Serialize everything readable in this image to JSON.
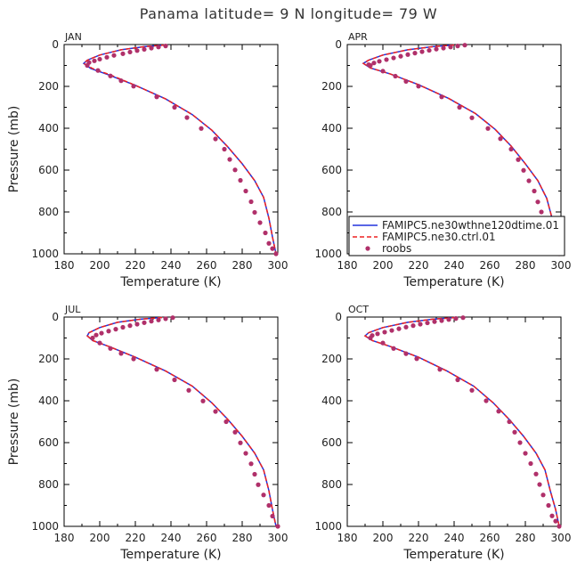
{
  "title": "Panama  latitude= 9 N longitude= 79 W",
  "colors": {
    "model_a": "#2233dd",
    "model_b": "#ee2222",
    "obs": "#b0306a",
    "frame": "#000000"
  },
  "chart_data": [
    {
      "type": "line",
      "panel": "JAN",
      "xlabel": "Temperature (K)",
      "ylabel": "Pressure (mb)",
      "xlim": [
        180,
        300
      ],
      "ylim": [
        1000,
        0
      ],
      "y_inverted": true,
      "xticks": [
        180,
        200,
        220,
        240,
        260,
        280,
        300
      ],
      "yticks": [
        0,
        200,
        400,
        600,
        800,
        1000
      ],
      "series": [
        {
          "name": "FAMIPC5.ne30wthne120dtime.01",
          "style": "solid",
          "x": [
            237,
            225,
            212,
            200,
            193,
            191,
            195,
            205,
            220,
            237,
            252,
            263,
            272,
            280,
            287,
            292,
            295,
            297,
            299
          ],
          "y": [
            2,
            10,
            25,
            50,
            75,
            90,
            115,
            145,
            195,
            260,
            335,
            410,
            490,
            570,
            650,
            730,
            830,
            920,
            1000
          ]
        },
        {
          "name": "FAMIPC5.ne30.ctrl.01",
          "style": "dashed",
          "x": [
            237,
            225,
            212,
            200,
            193,
            191,
            196,
            206,
            220,
            237,
            252,
            263,
            272,
            280,
            287,
            292,
            295,
            297,
            299
          ],
          "y": [
            2,
            10,
            25,
            50,
            75,
            90,
            115,
            145,
            195,
            260,
            335,
            410,
            490,
            570,
            650,
            730,
            830,
            920,
            1000
          ]
        },
        {
          "name": "roobs",
          "style": "dots",
          "x": [
            237,
            233,
            229,
            225,
            221,
            217,
            213,
            208,
            204,
            200,
            197,
            194,
            193,
            199,
            206,
            212,
            219,
            232,
            242,
            249,
            257,
            265,
            270,
            273,
            276,
            279,
            282,
            285,
            287,
            290,
            293,
            295,
            297,
            299
          ],
          "y": [
            7,
            12,
            17,
            23,
            29,
            36,
            44,
            52,
            61,
            70,
            78,
            86,
            100,
            124,
            150,
            173,
            199,
            250,
            300,
            349,
            401,
            451,
            500,
            549,
            599,
            649,
            700,
            751,
            802,
            851,
            900,
            950,
            975,
            1000
          ]
        }
      ]
    },
    {
      "type": "line",
      "panel": "APR",
      "xlabel": "Temperature (K)",
      "ylabel": "",
      "xlim": [
        180,
        300
      ],
      "ylim": [
        1000,
        0
      ],
      "y_inverted": true,
      "xticks": [
        180,
        200,
        220,
        240,
        260,
        280,
        300
      ],
      "yticks": [
        0,
        200,
        400,
        600,
        800,
        1000
      ],
      "legend": {
        "placement": "lower-right"
      },
      "series": [
        {
          "name": "FAMIPC5.ne30wthne120dtime.01",
          "style": "solid",
          "x": [
            240,
            228,
            214,
            200,
            192,
            189,
            193,
            204,
            220,
            237,
            252,
            263,
            272,
            280,
            287,
            292,
            295,
            297,
            299
          ],
          "y": [
            2,
            10,
            25,
            50,
            75,
            90,
            112,
            140,
            192,
            258,
            330,
            405,
            485,
            570,
            650,
            735,
            830,
            920,
            1000
          ]
        },
        {
          "name": "FAMIPC5.ne30.ctrl.01",
          "style": "dashed",
          "x": [
            240,
            228,
            214,
            200,
            192,
            189,
            193,
            204,
            220,
            237,
            252,
            263,
            272,
            280,
            287,
            292,
            295,
            297,
            299
          ],
          "y": [
            2,
            10,
            25,
            50,
            75,
            90,
            112,
            140,
            192,
            258,
            330,
            405,
            485,
            570,
            650,
            735,
            830,
            920,
            1000
          ]
        },
        {
          "name": "roobs",
          "style": "dots",
          "x": [
            246,
            242,
            238,
            234,
            230,
            226,
            222,
            218,
            214,
            210,
            206,
            202,
            198,
            195,
            192,
            193,
            200,
            207,
            213,
            220,
            233,
            243,
            250,
            259,
            266,
            272,
            276,
            279,
            282,
            285,
            287,
            289,
            293,
            295,
            297,
            299
          ],
          "y": [
            3,
            7,
            12,
            17,
            22,
            28,
            34,
            41,
            48,
            56,
            64,
            72,
            80,
            88,
            96,
            100,
            127,
            151,
            176,
            199,
            250,
            300,
            350,
            401,
            450,
            500,
            550,
            601,
            651,
            700,
            752,
            800,
            850,
            900,
            950,
            1000
          ]
        }
      ]
    },
    {
      "type": "line",
      "panel": "JUL",
      "xlabel": "Temperature (K)",
      "ylabel": "Pressure (mb)",
      "xlim": [
        180,
        300
      ],
      "ylim": [
        1000,
        0
      ],
      "y_inverted": true,
      "xticks": [
        180,
        200,
        220,
        240,
        260,
        280,
        300
      ],
      "yticks": [
        0,
        200,
        400,
        600,
        800,
        1000
      ],
      "series": [
        {
          "name": "FAMIPC5.ne30wthne120dtime.01",
          "style": "solid",
          "x": [
            235,
            223,
            210,
            200,
            194,
            193,
            196,
            205,
            220,
            237,
            252,
            263,
            272,
            280,
            287,
            292,
            295,
            297,
            299
          ],
          "y": [
            2,
            10,
            25,
            50,
            75,
            90,
            112,
            140,
            192,
            258,
            330,
            410,
            490,
            570,
            650,
            730,
            830,
            920,
            1000
          ]
        },
        {
          "name": "FAMIPC5.ne30.ctrl.01",
          "style": "dashed",
          "x": [
            235,
            223,
            210,
            200,
            194,
            193,
            196,
            205,
            220,
            237,
            252,
            263,
            272,
            280,
            287,
            292,
            295,
            297,
            299
          ],
          "y": [
            2,
            10,
            25,
            50,
            75,
            90,
            112,
            140,
            192,
            258,
            330,
            410,
            490,
            570,
            650,
            730,
            830,
            920,
            1000
          ]
        },
        {
          "name": "roobs",
          "style": "dots",
          "x": [
            241,
            237,
            233,
            229,
            225,
            221,
            217,
            213,
            209,
            205,
            201,
            198,
            196,
            200,
            206,
            212,
            219,
            232,
            242,
            250,
            258,
            265,
            271,
            276,
            279,
            282,
            285,
            287,
            289,
            292,
            295,
            297,
            300
          ],
          "y": [
            3,
            8,
            14,
            20,
            27,
            34,
            41,
            49,
            58,
            67,
            77,
            86,
            100,
            124,
            150,
            174,
            200,
            250,
            300,
            350,
            401,
            451,
            500,
            550,
            601,
            651,
            701,
            751,
            801,
            850,
            900,
            951,
            1000
          ]
        }
      ]
    },
    {
      "type": "line",
      "panel": "OCT",
      "xlabel": "Temperature (K)",
      "ylabel": "",
      "xlim": [
        180,
        300
      ],
      "ylim": [
        1000,
        0
      ],
      "y_inverted": true,
      "xticks": [
        180,
        200,
        220,
        240,
        260,
        280,
        300
      ],
      "yticks": [
        0,
        200,
        400,
        600,
        800,
        1000
      ],
      "series": [
        {
          "name": "FAMIPC5.ne30wthne120dtime.01",
          "style": "solid",
          "x": [
            241,
            228,
            214,
            200,
            192,
            190,
            194,
            204,
            220,
            236,
            251,
            262,
            271,
            279,
            286,
            291,
            294,
            297,
            299
          ],
          "y": [
            2,
            10,
            25,
            50,
            75,
            90,
            112,
            140,
            192,
            258,
            330,
            410,
            490,
            570,
            650,
            730,
            830,
            920,
            1000
          ]
        },
        {
          "name": "FAMIPC5.ne30.ctrl.01",
          "style": "dashed",
          "x": [
            241,
            228,
            214,
            200,
            192,
            190,
            194,
            204,
            220,
            236,
            251,
            262,
            271,
            279,
            286,
            291,
            294,
            297,
            299
          ],
          "y": [
            2,
            10,
            25,
            50,
            75,
            90,
            112,
            140,
            192,
            258,
            330,
            410,
            490,
            570,
            650,
            730,
            830,
            920,
            1000
          ]
        },
        {
          "name": "roobs",
          "style": "dots",
          "x": [
            245,
            241,
            237,
            233,
            229,
            225,
            221,
            217,
            213,
            209,
            205,
            201,
            197,
            194,
            193,
            200,
            206,
            213,
            219,
            232,
            242,
            250,
            258,
            265,
            271,
            274,
            277,
            280,
            283,
            286,
            288,
            290,
            293,
            295,
            297,
            299
          ],
          "y": [
            3,
            7,
            12,
            17,
            22,
            28,
            34,
            41,
            48,
            56,
            64,
            72,
            80,
            88,
            100,
            124,
            150,
            175,
            199,
            250,
            300,
            350,
            400,
            450,
            500,
            550,
            600,
            651,
            700,
            750,
            800,
            850,
            900,
            950,
            975,
            1000
          ]
        }
      ]
    }
  ]
}
